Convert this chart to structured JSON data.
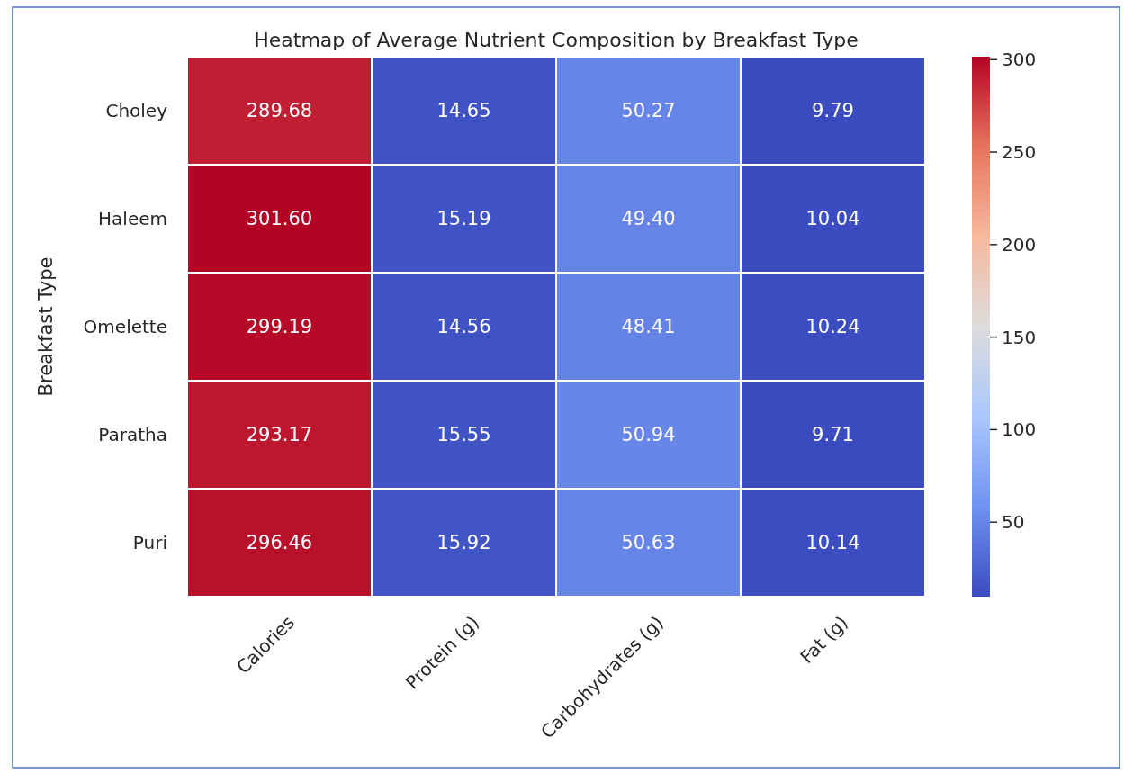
{
  "chart_data": {
    "type": "heatmap",
    "title": "Heatmap of Average Nutrient Composition by Breakfast Type",
    "ylabel": "Breakfast Type",
    "categories": [
      "Calories",
      "Protein (g)",
      "Carbohydrates (g)",
      "Fat (g)"
    ],
    "y_categories": [
      "Choley",
      "Haleem",
      "Omelette",
      "Paratha",
      "Puri"
    ],
    "cells": [
      [
        289.68,
        14.65,
        50.27,
        9.79
      ],
      [
        301.6,
        15.19,
        49.4,
        10.04
      ],
      [
        299.19,
        14.56,
        48.41,
        10.24
      ],
      [
        293.17,
        15.55,
        50.94,
        9.71
      ],
      [
        296.46,
        15.92,
        50.63,
        10.14
      ]
    ],
    "cell_labels": [
      [
        "289.68",
        "14.65",
        "50.27",
        "9.79"
      ],
      [
        "301.60",
        "15.19",
        "49.40",
        "10.04"
      ],
      [
        "299.19",
        "14.56",
        "48.41",
        "10.24"
      ],
      [
        "293.17",
        "15.55",
        "50.94",
        "9.71"
      ],
      [
        "296.46",
        "15.92",
        "50.63",
        "10.14"
      ]
    ],
    "clim": [
      9.71,
      301.6
    ],
    "cticks": [
      50,
      100,
      150,
      200,
      250,
      300
    ]
  }
}
